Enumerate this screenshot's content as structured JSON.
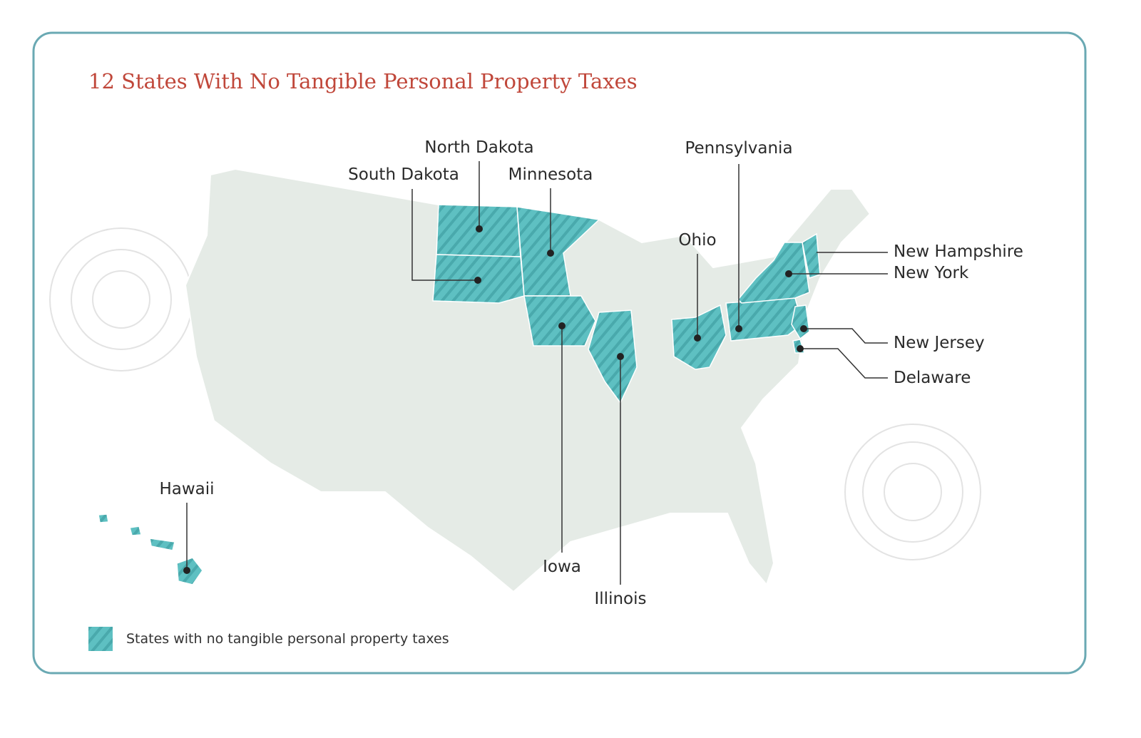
{
  "header": {
    "title": "12 States With No Tangible Personal Property Taxes"
  },
  "map": {
    "states": [
      {
        "name": "North Dakota"
      },
      {
        "name": "South Dakota"
      },
      {
        "name": "Minnesota"
      },
      {
        "name": "Iowa"
      },
      {
        "name": "Illinois"
      },
      {
        "name": "Ohio"
      },
      {
        "name": "Pennsylvania"
      },
      {
        "name": "New York"
      },
      {
        "name": "New Hampshire"
      },
      {
        "name": "New Jersey"
      },
      {
        "name": "Delaware"
      },
      {
        "name": "Hawaii"
      }
    ]
  },
  "legend": {
    "label": "States with no tangible personal property taxes"
  }
}
